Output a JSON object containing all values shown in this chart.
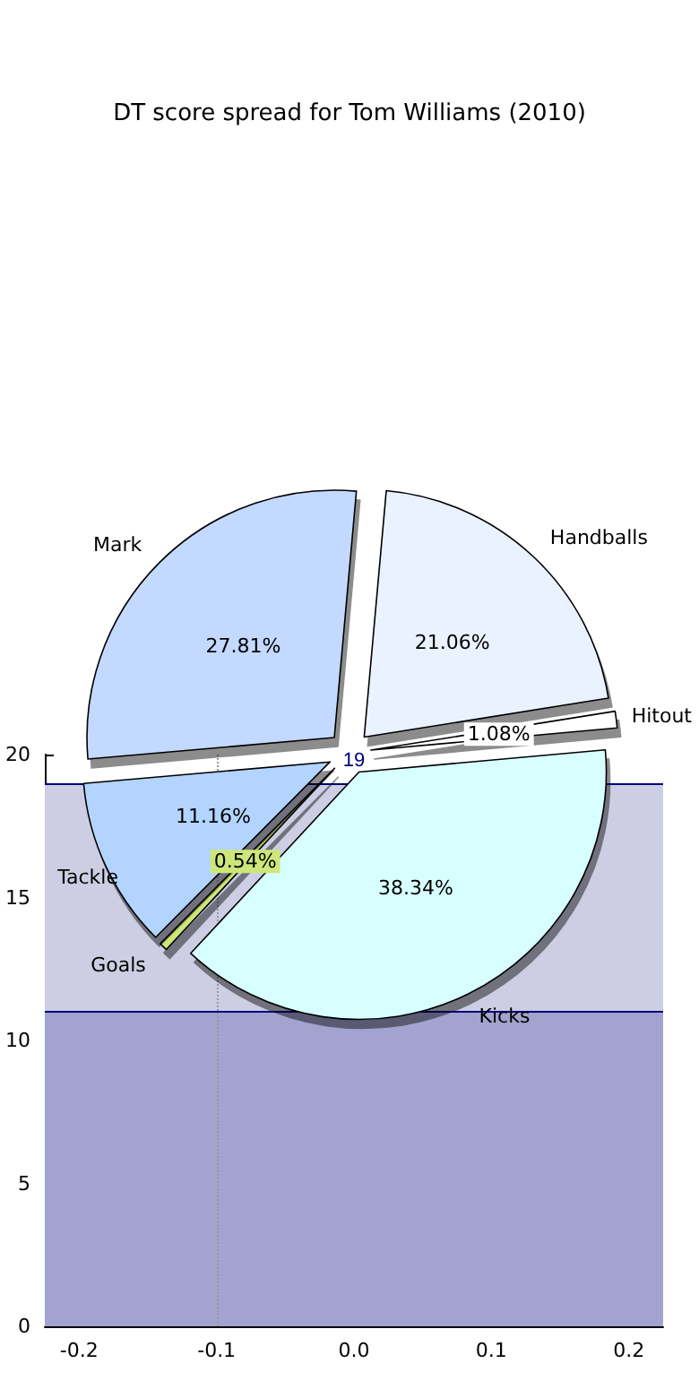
{
  "chart_data": [
    {
      "type": "pie",
      "title": "DT score spread for Tom Williams (2010)",
      "categories": [
        "Mark",
        "Handballs",
        "Hitout",
        "Kicks",
        "Goals",
        "Tackle"
      ],
      "values": [
        27.81,
        21.06,
        1.08,
        38.34,
        0.54,
        11.16
      ],
      "colors": [
        "#c3d9ff",
        "#eaf2ff",
        "#ffffff",
        "#d8ffff",
        "#cde67a",
        "#b3d4ff"
      ],
      "value_labels": [
        "27.81%",
        "21.06%",
        "1.08%",
        "38.34%",
        "0.54%",
        "11.16%"
      ],
      "legend": false
    },
    {
      "type": "line",
      "xlim": [
        -0.225,
        0.225
      ],
      "xticks": [
        -0.2,
        -0.1,
        {
          "value": 0,
          "label": "0.0"
        },
        0.1,
        0.2
      ],
      "ylim": [
        0,
        20
      ],
      "yticks": [
        0,
        5,
        10,
        15,
        20
      ],
      "bands": [
        {
          "axis": "y",
          "from": 0,
          "to": 11,
          "color": "#a3a3cf"
        },
        {
          "axis": "y",
          "from": 11,
          "to": 19,
          "color": "#cdcde3"
        }
      ],
      "ref_lines": [
        {
          "axis": "y",
          "value": 11,
          "color": "#000080"
        },
        {
          "axis": "y",
          "value": 19,
          "label": "19",
          "color": "#000080"
        },
        {
          "axis": "x",
          "value": -0.1,
          "color": "#999999",
          "line_style": "dotted"
        }
      ],
      "grid": false,
      "legend": false
    }
  ]
}
